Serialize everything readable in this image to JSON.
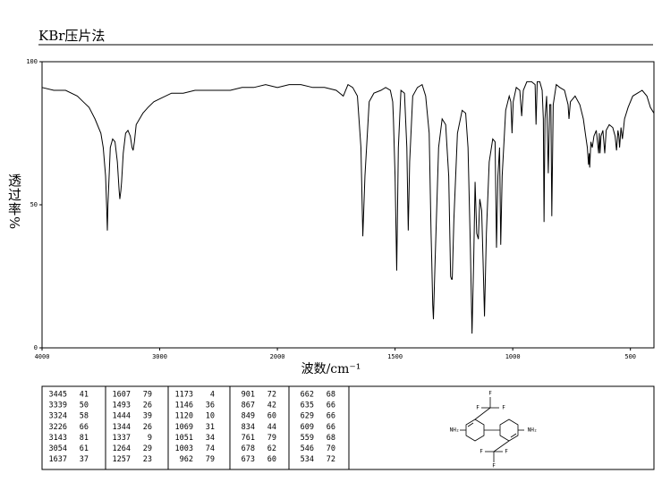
{
  "chart_data": {
    "type": "line",
    "title": "KBr压片法",
    "xlabel": "波数/cm⁻¹",
    "ylabel": "透过率%",
    "color": "#000000",
    "grid": false,
    "xlim": [
      4000,
      400
    ],
    "ylim": [
      0,
      100
    ],
    "xticks": [
      4000,
      3000,
      2000,
      1500,
      1000,
      500
    ],
    "yticks": [
      0,
      50,
      100
    ],
    "x": [
      4000,
      3900,
      3800,
      3700,
      3650,
      3600,
      3550,
      3500,
      3480,
      3460,
      3450,
      3445,
      3440,
      3420,
      3400,
      3380,
      3360,
      3345,
      3339,
      3330,
      3324,
      3310,
      3290,
      3270,
      3250,
      3235,
      3226,
      3215,
      3200,
      3143,
      3100,
      3050,
      3000,
      2900,
      2800,
      2700,
      2600,
      2500,
      2400,
      2300,
      2200,
      2100,
      2000,
      1950,
      1900,
      1850,
      1800,
      1750,
      1720,
      1700,
      1680,
      1660,
      1645,
      1637,
      1628,
      1610,
      1590,
      1560,
      1540,
      1520,
      1510,
      1507,
      1500,
      1493,
      1486,
      1475,
      1460,
      1450,
      1444,
      1438,
      1425,
      1405,
      1385,
      1370,
      1355,
      1347,
      1344,
      1340,
      1337,
      1330,
      1315,
      1300,
      1285,
      1272,
      1264,
      1260,
      1257,
      1250,
      1235,
      1215,
      1200,
      1190,
      1180,
      1173,
      1166,
      1160,
      1153,
      1146,
      1140,
      1132,
      1126,
      1120,
      1112,
      1100,
      1085,
      1075,
      1069,
      1063,
      1056,
      1051,
      1045,
      1030,
      1015,
      1008,
      1003,
      998,
      985,
      970,
      962,
      955,
      940,
      920,
      905,
      901,
      896,
      885,
      875,
      870,
      867,
      863,
      856,
      849,
      843,
      838,
      834,
      828,
      815,
      800,
      780,
      765,
      761,
      755,
      735,
      715,
      700,
      690,
      683,
      678,
      675,
      673,
      668,
      662,
      655,
      645,
      635,
      632,
      629,
      625,
      617,
      609,
      603,
      590,
      575,
      565,
      559,
      553,
      549,
      546,
      540,
      534,
      525,
      510,
      490,
      470,
      450,
      430,
      415,
      400
    ],
    "values": [
      91,
      90,
      90,
      88,
      86,
      84,
      80,
      75,
      70,
      60,
      48,
      41,
      50,
      70,
      73,
      72,
      65,
      55,
      52,
      55,
      58,
      68,
      75,
      76,
      74,
      70,
      69,
      72,
      78,
      82,
      84,
      86,
      87,
      89,
      89,
      90,
      90,
      90,
      90,
      91,
      91,
      92,
      91,
      92,
      92,
      91,
      91,
      90,
      88,
      92,
      91,
      88,
      70,
      39,
      60,
      86,
      89,
      90,
      91,
      90,
      86,
      80,
      60,
      27,
      70,
      90,
      89,
      70,
      41,
      65,
      88,
      91,
      92,
      88,
      75,
      40,
      30,
      15,
      10,
      30,
      70,
      80,
      78,
      60,
      25,
      24,
      24,
      45,
      75,
      83,
      82,
      70,
      35,
      5,
      30,
      58,
      40,
      38,
      52,
      48,
      30,
      11,
      40,
      65,
      73,
      72,
      35,
      60,
      70,
      36,
      60,
      83,
      88,
      86,
      75,
      86,
      91,
      90,
      81,
      90,
      93,
      93,
      92,
      78,
      93,
      93,
      90,
      80,
      44,
      80,
      88,
      61,
      85,
      85,
      46,
      85,
      92,
      91,
      90,
      85,
      80,
      86,
      88,
      85,
      80,
      74,
      70,
      64,
      68,
      63,
      72,
      70,
      74,
      76,
      68,
      75,
      68,
      74,
      76,
      68,
      76,
      78,
      77,
      74,
      69,
      76,
      74,
      70,
      77,
      73,
      80,
      84,
      88,
      89,
      90,
      88,
      84,
      82
    ]
  },
  "peak_table": {
    "rows": [
      [
        3445,
        41,
        1607,
        79,
        1173,
        4,
        901,
        72,
        662,
        68
      ],
      [
        3339,
        50,
        1493,
        26,
        1146,
        36,
        867,
        42,
        635,
        66
      ],
      [
        3324,
        58,
        1444,
        39,
        1120,
        10,
        849,
        60,
        629,
        66
      ],
      [
        3226,
        66,
        1344,
        26,
        1069,
        31,
        834,
        44,
        609,
        66
      ],
      [
        3143,
        81,
        1337,
        9,
        1051,
        34,
        761,
        79,
        559,
        68
      ],
      [
        3054,
        61,
        1264,
        29,
        1003,
        74,
        678,
        62,
        546,
        70
      ],
      [
        1637,
        37,
        1257,
        23,
        962,
        79,
        673,
        60,
        534,
        72
      ]
    ]
  },
  "structure": {
    "labels": [
      "F",
      "F",
      "F",
      "NH₂",
      "NH₂",
      "F",
      "F",
      "F"
    ]
  }
}
